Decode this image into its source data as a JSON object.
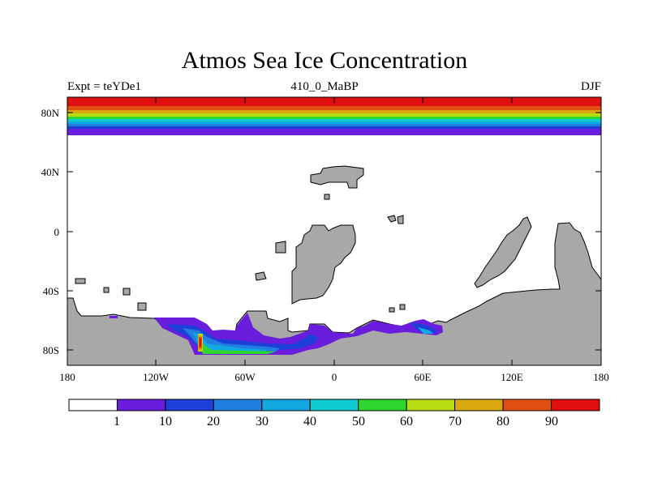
{
  "title": "Atmos Sea Ice Concentration",
  "subtitle_left": "Expt = teYDe1",
  "subtitle_center": "410_0_MaBP",
  "subtitle_right": "DJF",
  "lat_ticks": [
    "80N",
    "40N",
    "0",
    "40S",
    "80S"
  ],
  "lon_ticks": [
    "180",
    "120W",
    "60W",
    "0",
    "60E",
    "120E",
    "180"
  ],
  "colorbar": {
    "labels": [
      "1",
      "10",
      "20",
      "30",
      "40",
      "50",
      "60",
      "70",
      "80",
      "90"
    ],
    "colors": [
      "#ffffff",
      "#6a1ddc",
      "#1c3fd8",
      "#1f7ee0",
      "#12a8e0",
      "#10ccd0",
      "#2ed62e",
      "#b8de12",
      "#dca810",
      "#e05010",
      "#e01010"
    ]
  },
  "colors": {
    "land": "#a8a8a8",
    "ocean": "#ffffff"
  }
}
